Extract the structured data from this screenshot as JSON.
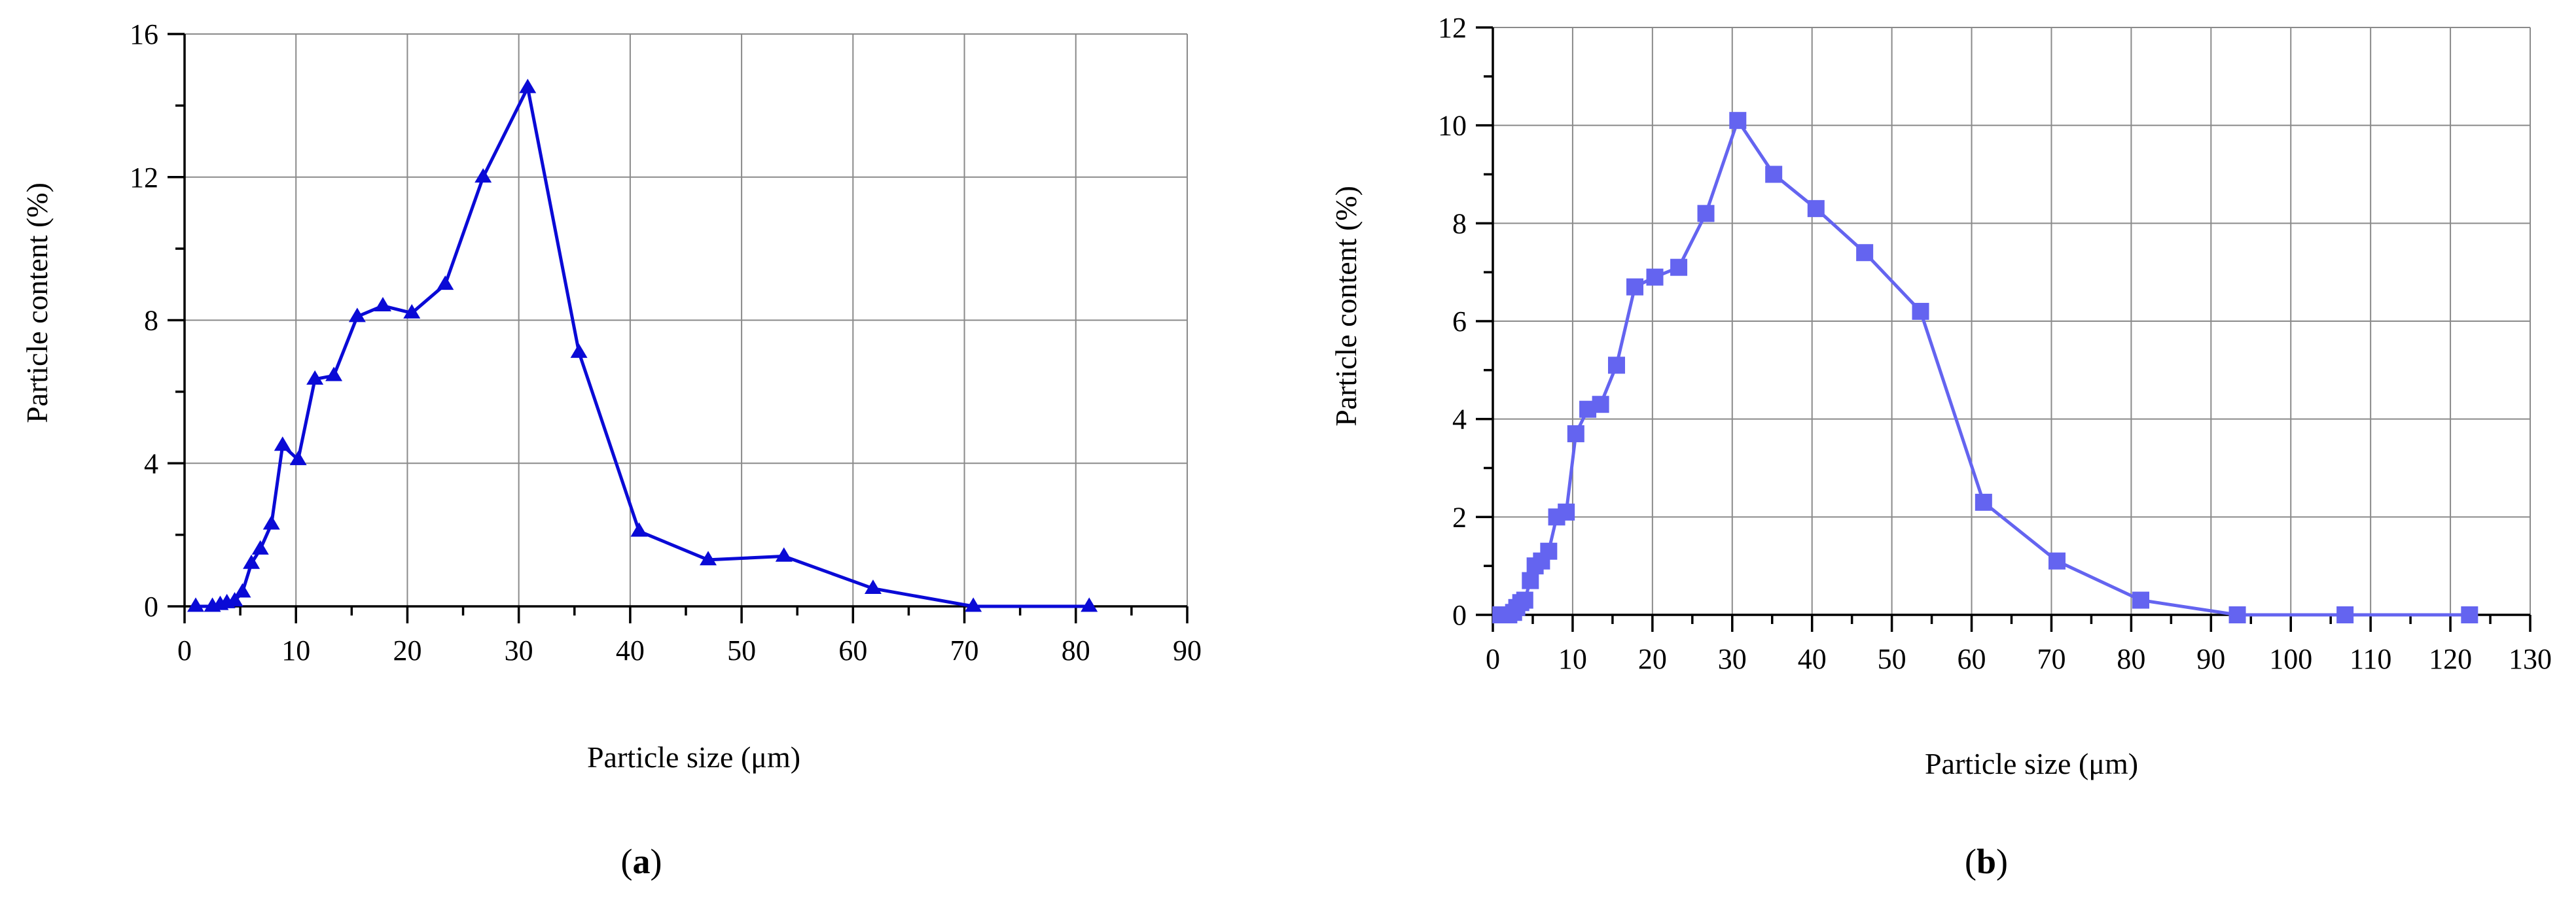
{
  "chart_data": [
    {
      "type": "line",
      "panel_label": "a",
      "xlabel": "Particle size (μm)",
      "ylabel": "Particle content (%)",
      "xlim": [
        0,
        90
      ],
      "ylim": [
        0,
        16
      ],
      "xticks": [
        0,
        10,
        20,
        30,
        40,
        50,
        60,
        70,
        80,
        90
      ],
      "yticks": [
        0,
        4,
        8,
        12,
        16
      ],
      "grid": true,
      "marker": "triangle",
      "color": "#0a0ad6",
      "series": [
        {
          "x": [
            1.0,
            2.5,
            3.2,
            3.8,
            4.5,
            5.2,
            6.0,
            6.8,
            7.8,
            8.8,
            10.2,
            11.7,
            13.4,
            15.5,
            17.8,
            20.4,
            23.4,
            26.8,
            30.8,
            35.4,
            40.8,
            47.0,
            53.8,
            61.8,
            70.8,
            81.2
          ],
          "y": [
            0.0,
            0.0,
            0.05,
            0.1,
            0.15,
            0.4,
            1.2,
            1.6,
            2.3,
            4.5,
            4.1,
            6.35,
            6.45,
            8.1,
            8.4,
            8.2,
            9.0,
            12.0,
            14.5,
            7.1,
            2.1,
            1.3,
            1.4,
            0.5,
            0.0,
            0.0
          ]
        }
      ]
    },
    {
      "type": "line",
      "panel_label": "b",
      "xlabel": "Particle size (μm)",
      "ylabel": "Particle content (%)",
      "xlim": [
        0,
        130
      ],
      "ylim": [
        0,
        12
      ],
      "xticks": [
        0,
        10,
        20,
        30,
        40,
        50,
        60,
        70,
        80,
        90,
        100,
        110,
        120,
        130
      ],
      "yticks": [
        0,
        2,
        4,
        6,
        8,
        10,
        12
      ],
      "grid": true,
      "marker": "square",
      "color": "#6464f0",
      "series": [
        {
          "x": [
            1.0,
            1.5,
            2.0,
            2.6,
            3.0,
            3.5,
            4.0,
            4.7,
            5.3,
            6.1,
            7.0,
            8.0,
            9.2,
            10.4,
            11.9,
            13.5,
            15.5,
            17.8,
            20.3,
            23.3,
            26.7,
            30.7,
            35.2,
            40.5,
            46.6,
            53.6,
            61.5,
            70.7,
            81.2,
            93.3,
            106.8,
            122.4
          ],
          "y": [
            0.0,
            0.0,
            0.0,
            0.05,
            0.15,
            0.25,
            0.3,
            0.7,
            1.0,
            1.1,
            1.3,
            2.0,
            2.1,
            3.7,
            4.2,
            4.3,
            5.1,
            6.7,
            6.9,
            7.1,
            8.2,
            10.1,
            9.0,
            8.3,
            7.4,
            6.2,
            2.3,
            1.1,
            0.3,
            0.0,
            0.0,
            0.0
          ]
        }
      ]
    }
  ]
}
